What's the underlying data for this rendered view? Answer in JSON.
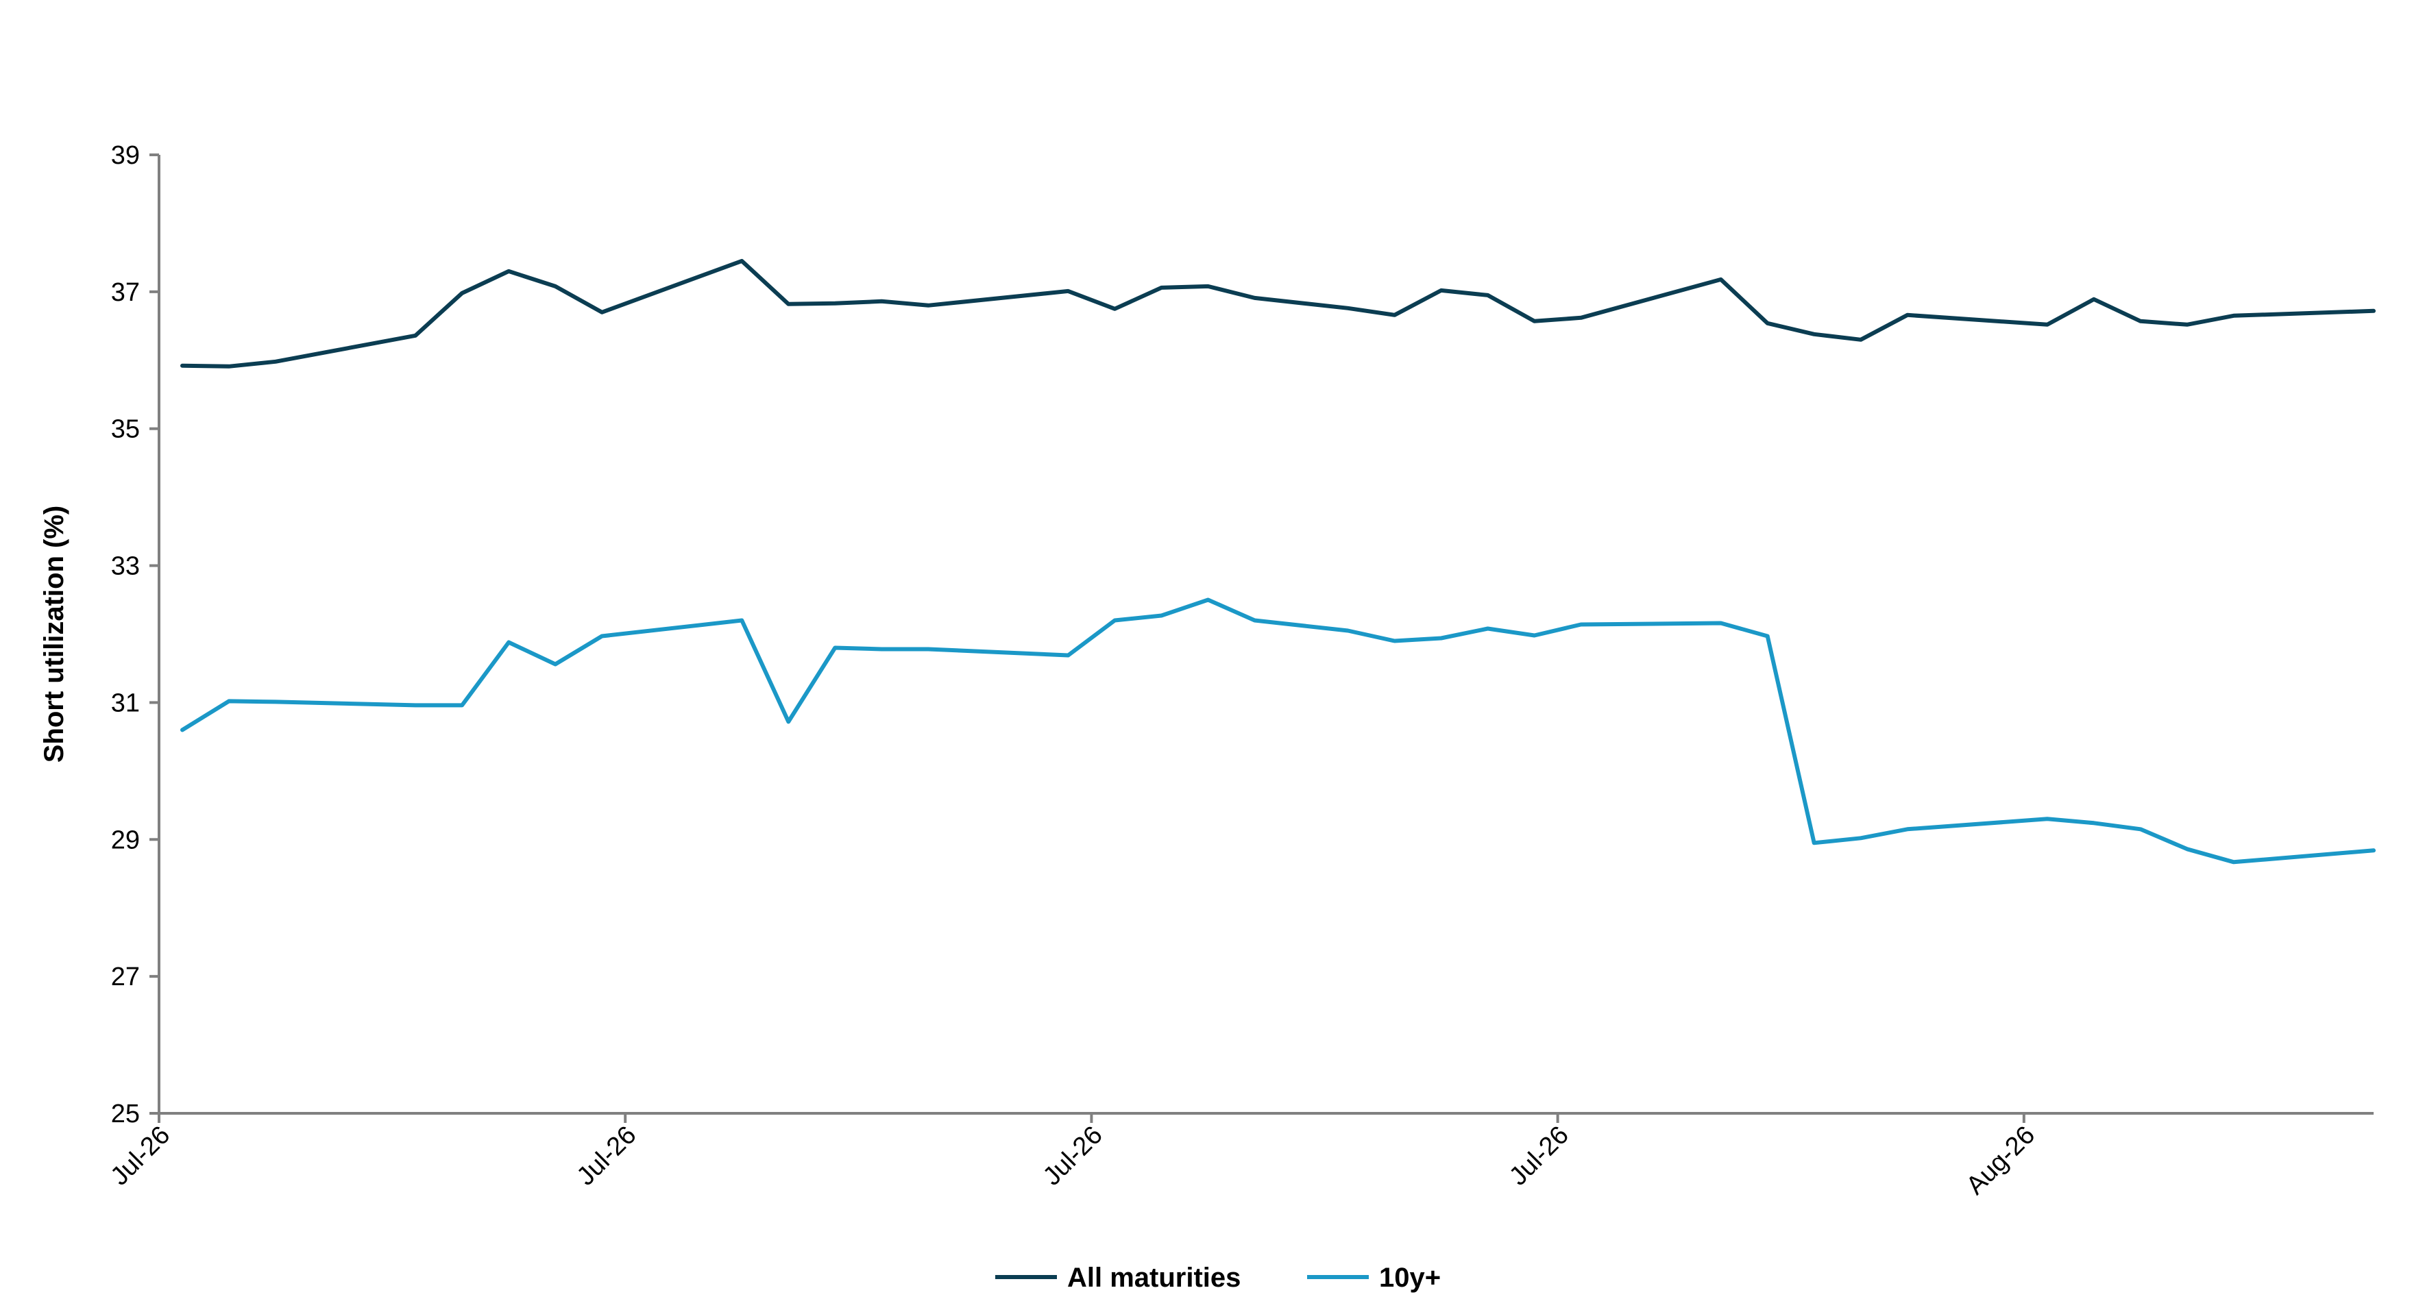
{
  "chart_data": {
    "type": "line",
    "title": "",
    "xlabel": "",
    "ylabel": "Short utilization (%)",
    "ylim": [
      25,
      39
    ],
    "yticks": [
      25,
      27,
      29,
      31,
      33,
      35,
      37,
      39
    ],
    "xlim": [
      0,
      47.5
    ],
    "xtick_labels": [
      {
        "x": 0,
        "label": "Jul-26"
      },
      {
        "x": 10,
        "label": "Jul-26"
      },
      {
        "x": 20,
        "label": "Jul-26"
      },
      {
        "x": 30,
        "label": "Jul-26"
      },
      {
        "x": 40,
        "label": "Aug-26"
      }
    ],
    "grid": false,
    "legend_position": "bottom-center",
    "series": [
      {
        "name": "All maturities",
        "color": "#0b3d52",
        "x": [
          0.5,
          1.5,
          2.5,
          5.5,
          6.5,
          7.5,
          8.5,
          9.5,
          12.5,
          13.5,
          14.5,
          15.5,
          16.5,
          19.5,
          20.5,
          21.5,
          22.5,
          23.5,
          25.5,
          26.5,
          27.5,
          28.5,
          29.5,
          30.5,
          33.5,
          34.5,
          35.5,
          36.5,
          37.5,
          40.5,
          41.5,
          42.5,
          43.5,
          44.5,
          47.5
        ],
        "values": [
          35.92,
          35.91,
          35.98,
          36.36,
          36.98,
          37.3,
          37.08,
          36.7,
          37.45,
          36.82,
          36.83,
          36.86,
          36.8,
          37.01,
          36.75,
          37.06,
          37.08,
          36.91,
          36.76,
          36.66,
          37.02,
          36.95,
          36.57,
          36.62,
          37.18,
          36.54,
          36.38,
          36.3,
          36.66,
          36.52,
          36.89,
          36.57,
          36.52,
          36.65,
          36.72
        ]
      },
      {
        "name": "10y+",
        "color": "#1b98c7",
        "x": [
          0.5,
          1.5,
          2.5,
          5.5,
          6.5,
          7.5,
          8.5,
          9.5,
          12.5,
          13.5,
          14.5,
          15.5,
          16.5,
          19.5,
          20.5,
          21.5,
          22.5,
          23.5,
          25.5,
          26.5,
          27.5,
          28.5,
          29.5,
          30.5,
          33.5,
          34.5,
          35.5,
          36.5,
          37.5,
          40.5,
          41.5,
          42.5,
          43.5,
          44.5,
          47.5
        ],
        "values": [
          30.6,
          31.02,
          31.01,
          30.96,
          30.96,
          31.88,
          31.56,
          31.97,
          32.2,
          30.72,
          31.8,
          31.78,
          31.78,
          31.69,
          32.2,
          32.27,
          32.5,
          32.2,
          32.05,
          31.9,
          31.94,
          32.08,
          31.98,
          32.14,
          32.16,
          31.97,
          28.95,
          29.02,
          29.15,
          29.3,
          29.24,
          29.15,
          28.86,
          28.67,
          28.84
        ]
      }
    ]
  }
}
